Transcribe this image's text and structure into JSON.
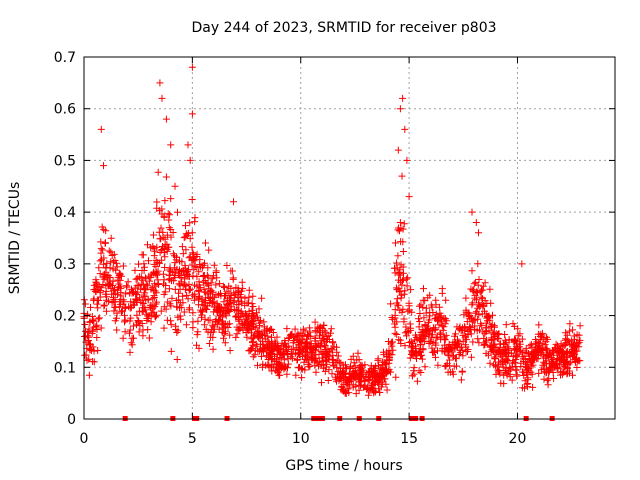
{
  "chart_data": {
    "type": "scatter",
    "title": "Day 244 of 2023, SRMTID for receiver p803",
    "xlabel": "GPS time / hours",
    "ylabel": "SRMTID / TECUs",
    "xlim": [
      0,
      24.5
    ],
    "ylim": [
      0,
      0.7
    ],
    "xticks": [
      0,
      5,
      10,
      15,
      20
    ],
    "yticks": [
      0,
      0.1,
      0.2,
      0.3,
      0.4,
      0.5,
      0.6,
      0.7
    ],
    "xtick_labels": [
      "0",
      "5",
      "10",
      "15",
      "20"
    ],
    "ytick_labels": [
      "0",
      "0.1",
      "0.2",
      "0.3",
      "0.4",
      "0.5",
      "0.6",
      "0.7"
    ],
    "grid": true,
    "marker": "+",
    "color": "#ff0000",
    "envelope": {
      "x": [
        0,
        0.3,
        0.6,
        0.9,
        1.2,
        1.6,
        2.0,
        2.5,
        3.0,
        3.5,
        4.0,
        4.5,
        5.0,
        5.5,
        6.0,
        6.5,
        7.0,
        7.5,
        8.0,
        8.5,
        9.0,
        9.5,
        10.0,
        10.5,
        11.0,
        11.5,
        12.0,
        12.5,
        13.0,
        13.5,
        14.0,
        14.3,
        14.6,
        14.9,
        15.2,
        15.5,
        16.0,
        16.5,
        17.0,
        17.5,
        18.0,
        18.5,
        19.0,
        19.5,
        20.0,
        20.5,
        21.0,
        21.5,
        22.0,
        22.5,
        22.9
      ],
      "center": [
        0.2,
        0.15,
        0.22,
        0.3,
        0.27,
        0.24,
        0.2,
        0.24,
        0.23,
        0.32,
        0.28,
        0.25,
        0.3,
        0.24,
        0.22,
        0.2,
        0.23,
        0.19,
        0.17,
        0.14,
        0.12,
        0.14,
        0.14,
        0.13,
        0.14,
        0.11,
        0.08,
        0.09,
        0.08,
        0.08,
        0.1,
        0.2,
        0.3,
        0.22,
        0.12,
        0.16,
        0.18,
        0.17,
        0.12,
        0.15,
        0.22,
        0.2,
        0.13,
        0.12,
        0.13,
        0.1,
        0.14,
        0.11,
        0.12,
        0.13,
        0.14
      ],
      "spread": [
        0.07,
        0.06,
        0.12,
        0.1,
        0.09,
        0.07,
        0.07,
        0.07,
        0.1,
        0.14,
        0.13,
        0.1,
        0.12,
        0.08,
        0.07,
        0.06,
        0.07,
        0.06,
        0.05,
        0.05,
        0.04,
        0.05,
        0.05,
        0.04,
        0.05,
        0.04,
        0.03,
        0.04,
        0.03,
        0.03,
        0.04,
        0.12,
        0.15,
        0.1,
        0.05,
        0.06,
        0.06,
        0.06,
        0.05,
        0.06,
        0.08,
        0.07,
        0.05,
        0.05,
        0.05,
        0.04,
        0.05,
        0.04,
        0.04,
        0.05,
        0.05
      ]
    },
    "peaks": [
      {
        "x": 0.8,
        "y": 0.56
      },
      {
        "x": 0.9,
        "y": 0.49
      },
      {
        "x": 3.5,
        "y": 0.65
      },
      {
        "x": 3.6,
        "y": 0.62
      },
      {
        "x": 3.8,
        "y": 0.58
      },
      {
        "x": 4.0,
        "y": 0.53
      },
      {
        "x": 4.8,
        "y": 0.53
      },
      {
        "x": 4.9,
        "y": 0.5
      },
      {
        "x": 5.0,
        "y": 0.68
      },
      {
        "x": 5.0,
        "y": 0.59
      },
      {
        "x": 6.9,
        "y": 0.42
      },
      {
        "x": 14.7,
        "y": 0.62
      },
      {
        "x": 14.6,
        "y": 0.6
      },
      {
        "x": 14.8,
        "y": 0.56
      },
      {
        "x": 14.5,
        "y": 0.52
      },
      {
        "x": 14.9,
        "y": 0.5
      },
      {
        "x": 15.0,
        "y": 0.43
      },
      {
        "x": 17.9,
        "y": 0.4
      },
      {
        "x": 18.1,
        "y": 0.38
      },
      {
        "x": 18.2,
        "y": 0.36
      },
      {
        "x": 20.2,
        "y": 0.3
      },
      {
        "x": 14.6,
        "y": 0.38
      },
      {
        "x": 4.2,
        "y": 0.45
      }
    ],
    "zero_markers": [
      1.9,
      4.1,
      5.1,
      5.2,
      6.6,
      10.6,
      10.8,
      11.0,
      11.8,
      12.7,
      13.6,
      15.1,
      15.3,
      15.6,
      20.4,
      21.6
    ]
  }
}
